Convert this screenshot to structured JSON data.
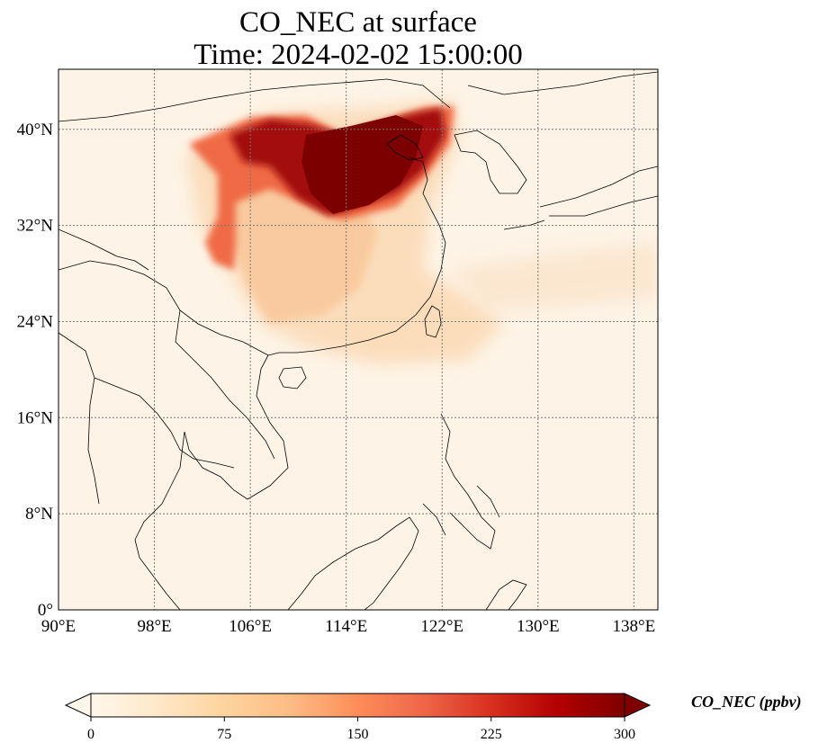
{
  "figure": {
    "title_line1": "CO_NEC at surface",
    "title_line2": "Time: 2024-02-02 15:00:00",
    "colormap": "OrRd",
    "colormap_stops": [
      "#fff7ec",
      "#fee8c8",
      "#fdd49e",
      "#fdbb84",
      "#fc8d59",
      "#ef6548",
      "#d7301f",
      "#b30000",
      "#7f0000"
    ]
  },
  "map": {
    "lon_range": [
      90,
      140
    ],
    "lat_range": [
      0,
      45
    ],
    "lon_ticks": [
      {
        "value": 90,
        "label": "90°E"
      },
      {
        "value": 98,
        "label": "98°E"
      },
      {
        "value": 106,
        "label": "106°E"
      },
      {
        "value": 114,
        "label": "114°E"
      },
      {
        "value": 122,
        "label": "122°E"
      },
      {
        "value": 130,
        "label": "130°E"
      },
      {
        "value": 138,
        "label": "138°E"
      }
    ],
    "lat_ticks": [
      {
        "value": 0,
        "label": "0°"
      },
      {
        "value": 8,
        "label": "8°N"
      },
      {
        "value": 16,
        "label": "16°N"
      },
      {
        "value": 24,
        "label": "24°N"
      },
      {
        "value": 32,
        "label": "32°N"
      },
      {
        "value": 40,
        "label": "40°N"
      }
    ],
    "gridlines": true,
    "gridline_style": "dotted"
  },
  "colorbar": {
    "label": "CO_NEC (ppbv)",
    "range": [
      0,
      300
    ],
    "extend": "both",
    "ticks": [
      {
        "value": 0,
        "label": "0"
      },
      {
        "value": 75,
        "label": "75"
      },
      {
        "value": 150,
        "label": "150"
      },
      {
        "value": 225,
        "label": "225"
      },
      {
        "value": 300,
        "label": "300"
      }
    ]
  }
}
